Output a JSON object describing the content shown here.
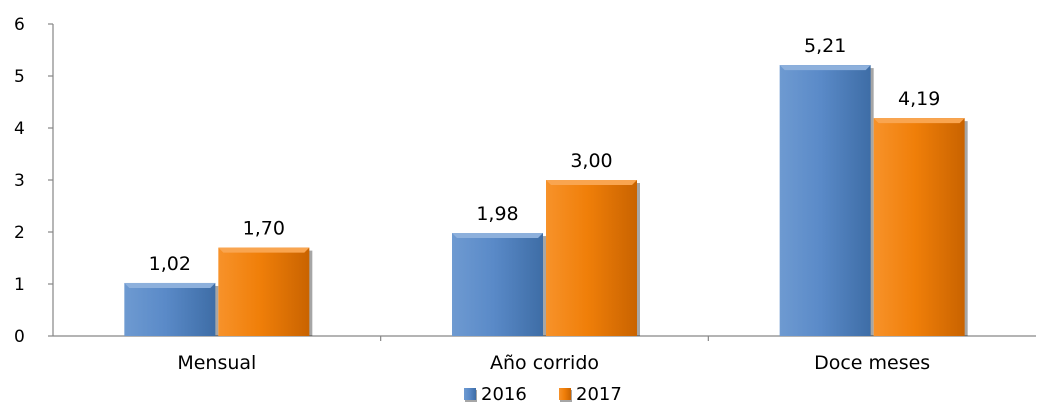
{
  "chart_data": {
    "type": "bar",
    "categories": [
      "Mensual",
      "Año corrido",
      "Doce meses"
    ],
    "series": [
      {
        "name": "2016",
        "values": [
          1.02,
          1.98,
          5.21
        ],
        "labels": [
          "1,02",
          "1,98",
          "5,21"
        ],
        "color": "#4F81BD"
      },
      {
        "name": "2017",
        "values": [
          1.7,
          3.0,
          4.19
        ],
        "labels": [
          "1,70",
          "3,00",
          "4,19"
        ],
        "color": "#F07F09"
      }
    ],
    "ylim": [
      0,
      6
    ],
    "yticks": [
      0,
      1,
      2,
      3,
      4,
      5,
      6
    ],
    "grid": false,
    "legend": "bottom-center"
  }
}
